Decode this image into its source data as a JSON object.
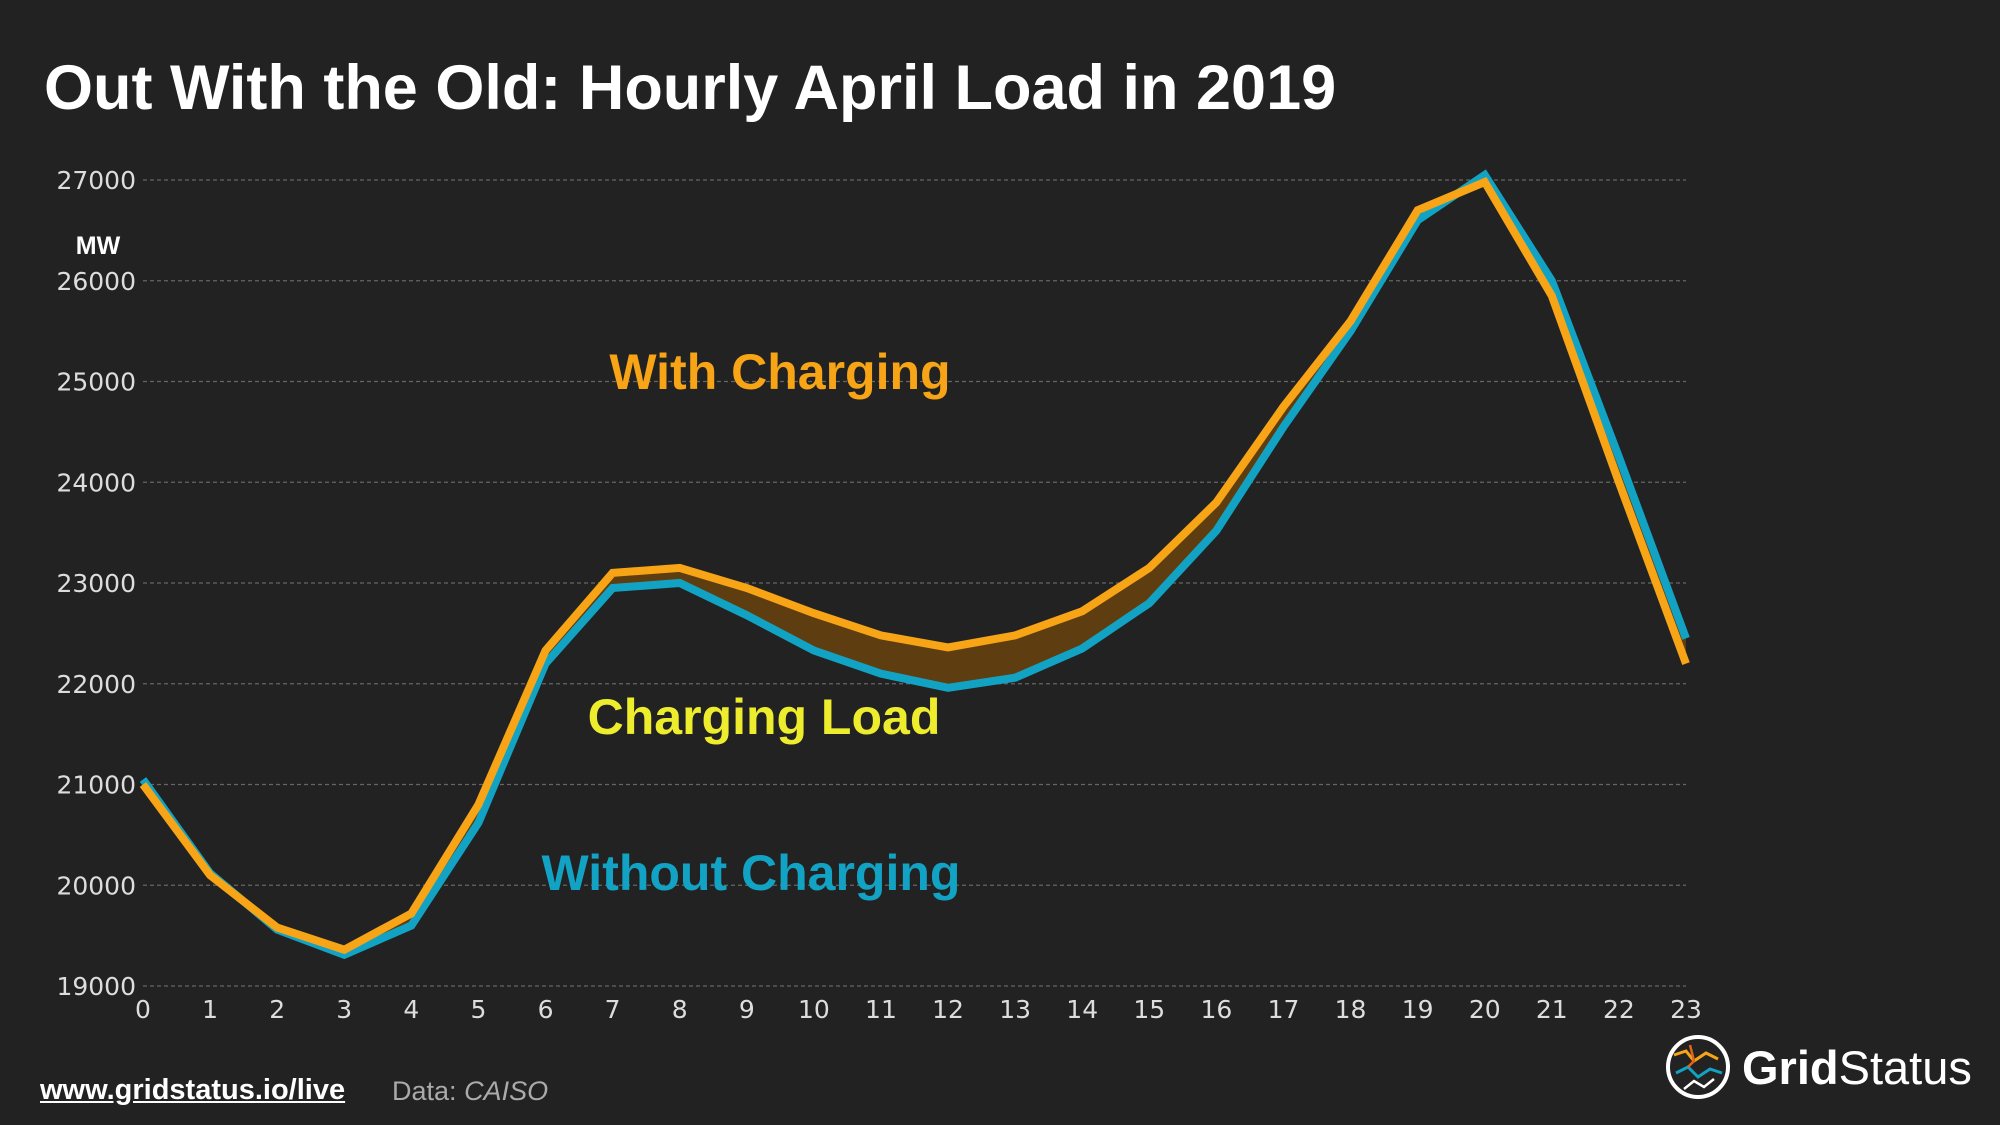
{
  "chart_data": {
    "type": "line",
    "title": "Out With the Old: Hourly April Load in 2019",
    "ylabel": "MW",
    "xlabel": "",
    "x": [
      0,
      1,
      2,
      3,
      4,
      5,
      6,
      7,
      8,
      9,
      10,
      11,
      12,
      13,
      14,
      15,
      16,
      17,
      18,
      19,
      20,
      21,
      22,
      23
    ],
    "series": [
      {
        "name": "With Charging",
        "color": "#f7a416",
        "values": [
          21000,
          20100,
          19580,
          19360,
          19720,
          20800,
          22330,
          23100,
          23150,
          22950,
          22700,
          22480,
          22360,
          22480,
          22720,
          23150,
          23800,
          24750,
          25600,
          26700,
          26980,
          25850,
          24000,
          22200
        ]
      },
      {
        "name": "Without Charging",
        "color": "#12a3c4",
        "values": [
          21050,
          20120,
          19560,
          19310,
          19600,
          20620,
          22200,
          22950,
          23000,
          22680,
          22330,
          22100,
          21960,
          22060,
          22350,
          22800,
          23520,
          24550,
          25500,
          26600,
          27050,
          26000,
          24250,
          22450
        ]
      }
    ],
    "ylim": [
      19000,
      27200
    ],
    "xlim": [
      0,
      23
    ],
    "yticks": [
      19000,
      20000,
      21000,
      22000,
      23000,
      24000,
      25000,
      26000,
      27000
    ],
    "grid": true,
    "fill_between_color": "#5e3e10",
    "annotations": [
      {
        "text": "With Charging",
        "color": "#f7a416"
      },
      {
        "text": "Charging Load",
        "color": "#eded2d"
      },
      {
        "text": "Without Charging",
        "color": "#12a3c4"
      }
    ]
  },
  "footer": {
    "link": "www.gridstatus.io/live",
    "source_label": "Data:",
    "source_value": "CAISO"
  },
  "logo": {
    "text_bold": "Grid",
    "text_regular": "Status",
    "icon": "grid-status-logo-icon"
  }
}
